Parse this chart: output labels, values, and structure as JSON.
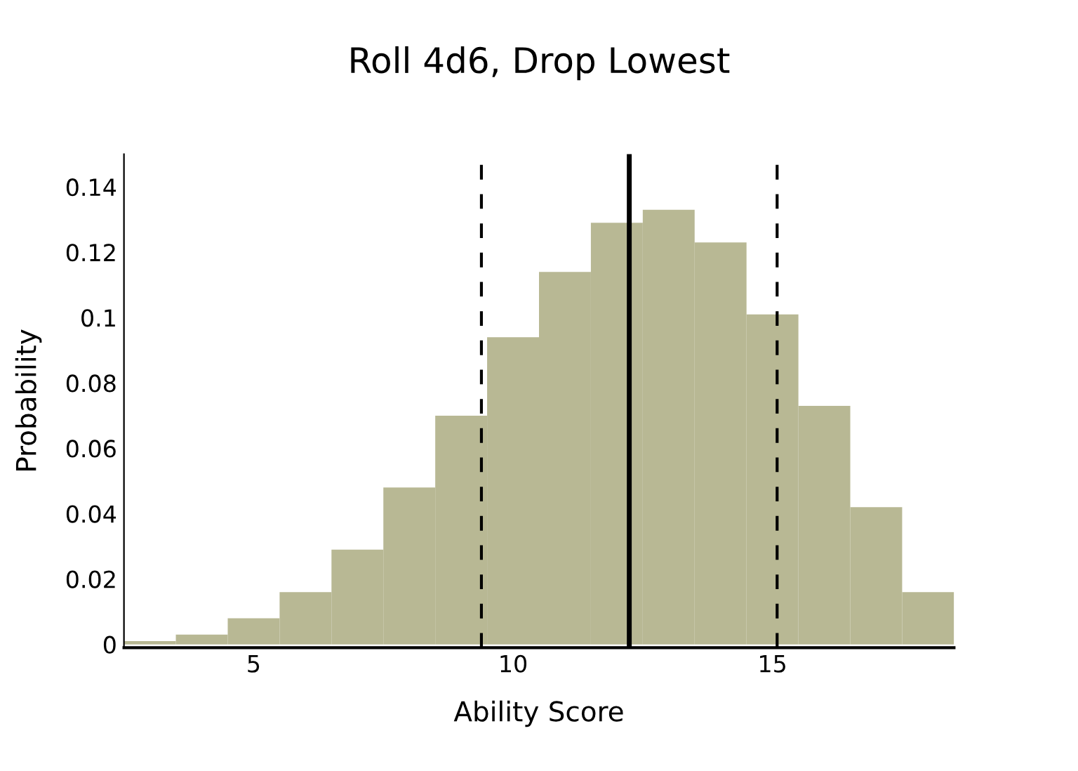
{
  "chart_data": {
    "type": "histogram",
    "title": "Roll 4d6, Drop Lowest",
    "xlabel": "Ability Score",
    "ylabel": "Probability",
    "bins": [
      2.5,
      3.5,
      4.5,
      5.5,
      6.5,
      7.5,
      8.5,
      9.5,
      10.5,
      11.5,
      12.5,
      13.5,
      14.5,
      15.5,
      16.5,
      17.5,
      18.5
    ],
    "values": [
      0.001,
      0.003,
      0.008,
      0.016,
      0.029,
      0.048,
      0.07,
      0.094,
      0.114,
      0.129,
      0.133,
      0.123,
      0.101,
      0.073,
      0.042,
      0.016
    ],
    "color": "#b8b894",
    "xlim": [
      2.5,
      18.5
    ],
    "ylim": [
      -0.001,
      0.15
    ],
    "xticks": [
      5,
      10,
      15
    ],
    "yticks": [
      0,
      0.02,
      0.04,
      0.06,
      0.08,
      0.1,
      0.12,
      0.14
    ],
    "ref_lines": [
      {
        "axis": "x",
        "value": 9.39,
        "label": null,
        "color": "#000000",
        "line_style": "dashed"
      },
      {
        "axis": "x",
        "value": 12.24,
        "label": null,
        "color": "#000000",
        "line_style": "solid"
      },
      {
        "axis": "x",
        "value": 15.09,
        "label": null,
        "color": "#000000",
        "line_style": "dashed"
      }
    ],
    "grid": false,
    "legend": false
  }
}
